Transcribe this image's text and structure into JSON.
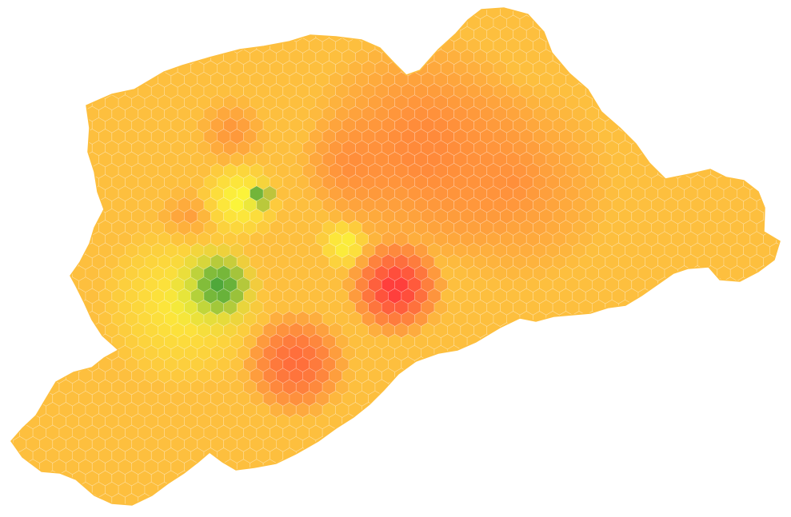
{
  "map": {
    "style": "hexbin-heatmap",
    "colors": {
      "base": "#fdbf3e",
      "orange": "#ff8a3a",
      "red": "#ff3f3c",
      "yellow": "#fbf53a",
      "light_green": "#c8dd3a",
      "green": "#4fa83a",
      "hex_border": "#ffffff"
    }
  }
}
